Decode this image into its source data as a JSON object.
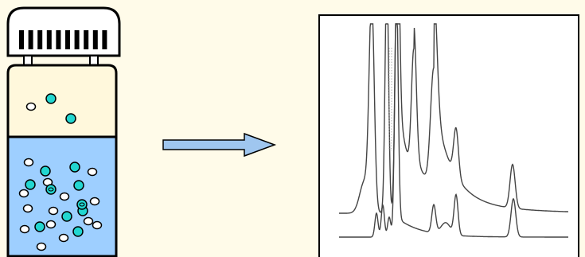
{
  "colors": {
    "background": "#fffbe9",
    "liquid": "#9ecfff",
    "headspace": "#fff8dc",
    "molecule_cyan": "#22d6d0",
    "molecule_white": "#ffffff",
    "arrow_fill": "#9fc6ef",
    "outline": "#000000",
    "trace": "#444444"
  },
  "icons": {
    "vial": "headspace-vial-icon",
    "arrow": "right-arrow-icon",
    "chromatogram": "chromatogram-panel"
  }
}
